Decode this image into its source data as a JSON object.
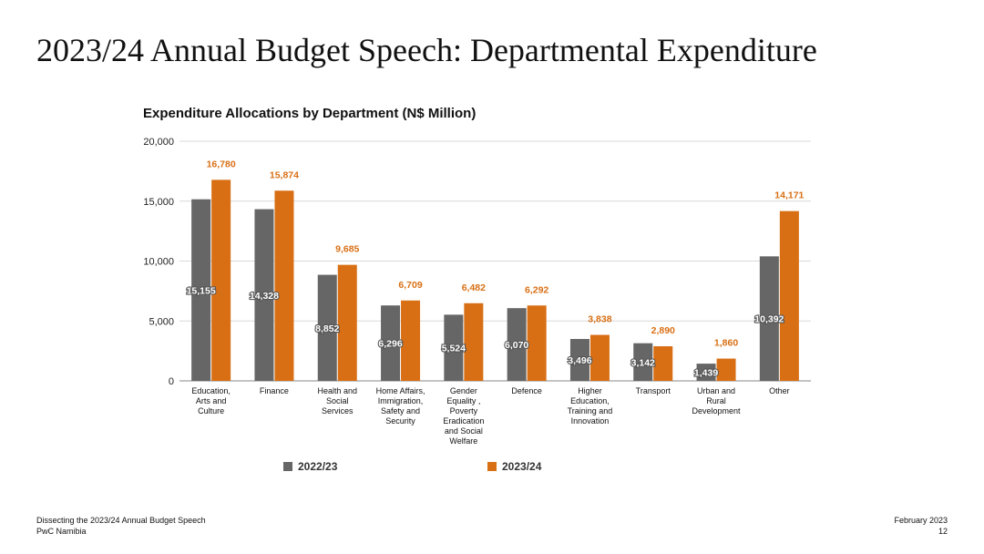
{
  "slide": {
    "title": "2023/24 Annual Budget Speech: Departmental Expenditure"
  },
  "footer": {
    "left_line1": "Dissecting the 2023/24 Annual Budget Speech",
    "left_line2": "PwC Namibia",
    "right_line1": "February 2023",
    "right_line2": "12"
  },
  "colors": {
    "series_2022": "#666666",
    "series_2023": "#d86f14",
    "gridline": "#d9d9d9"
  },
  "chart_data": {
    "type": "bar",
    "title": "Expenditure Allocations by Department (N$ Million)",
    "xlabel": "",
    "ylabel": "",
    "ylim": [
      0,
      20000
    ],
    "yticks": [
      0,
      5000,
      10000,
      15000,
      20000
    ],
    "ytick_labels": [
      "0",
      "5,000",
      "10,000",
      "15,000",
      "20,000"
    ],
    "grid": true,
    "legend_position": "bottom",
    "categories": [
      [
        "Education,",
        "Arts and",
        "Culture"
      ],
      [
        "Finance"
      ],
      [
        "Health and",
        "Social",
        "Services"
      ],
      [
        "Home Affairs,",
        "Immigration,",
        "Safety and",
        "Security"
      ],
      [
        "Gender",
        "Equality ,",
        "Poverty",
        "Eradication",
        "and Social",
        "Welfare"
      ],
      [
        "Defence"
      ],
      [
        "Higher",
        "Education,",
        "Training and",
        "Innovation"
      ],
      [
        "Transport"
      ],
      [
        "Urban and",
        "Rural",
        "Development"
      ],
      [
        "Other"
      ]
    ],
    "series": [
      {
        "name": "2022/23",
        "values": [
          15155,
          14328,
          8852,
          6296,
          5524,
          6070,
          3496,
          3142,
          1439,
          10392
        ],
        "labels": [
          "15,155",
          "14,328",
          "8,852",
          "6,296",
          "5,524",
          "6,070",
          "3,496",
          "3,142",
          "1,439",
          "10,392"
        ]
      },
      {
        "name": "2023/24",
        "values": [
          16780,
          15874,
          9685,
          6709,
          6482,
          6292,
          3838,
          2890,
          1860,
          14171
        ],
        "labels": [
          "16,780",
          "15,874",
          "9,685",
          "6,709",
          "6,482",
          "6,292",
          "3,838",
          "2,890",
          "1,860",
          "14,171"
        ]
      }
    ]
  }
}
